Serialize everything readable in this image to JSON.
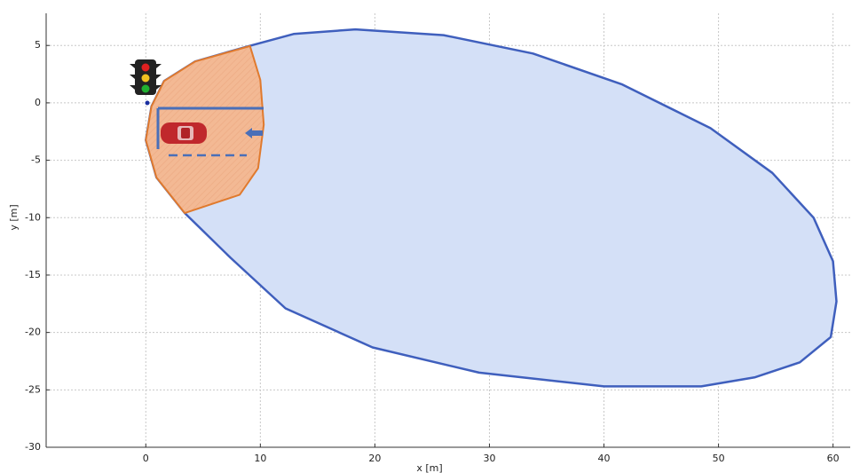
{
  "chart_data": {
    "type": "region",
    "x_label": "x [m]",
    "y_label": "y [m]",
    "xlim": [
      -8.7,
      61.5
    ],
    "ylim": [
      -30,
      7.8
    ],
    "xticks": [
      0,
      10,
      20,
      30,
      40,
      50,
      60
    ],
    "yticks": [
      5,
      0,
      -5,
      -10,
      -15,
      -20,
      -25,
      -30
    ],
    "grid": true,
    "series": [
      {
        "color": "#3f5fbd",
        "fill": "#d4e0f7",
        "x": [
          0,
          0.93,
          3.4,
          7.4,
          12.2,
          19.8,
          29.1,
          40,
          48.5,
          53.2,
          57.1,
          59.8,
          60.3,
          60,
          58.3,
          54.7,
          49.3,
          41.6,
          33.8,
          26,
          18.3,
          12.9,
          9,
          4.3,
          1.6,
          0.5
        ],
        "y": [
          -3.25,
          -6.5,
          -9.6,
          -13.5,
          -17.9,
          -21.3,
          -23.5,
          -24.7,
          -24.7,
          -23.9,
          -22.6,
          -20.4,
          -17.3,
          -13.8,
          -10,
          -6.1,
          -2.2,
          1.6,
          4.3,
          5.9,
          6.4,
          6,
          4.95,
          3.6,
          1.9,
          -0.3
        ]
      },
      {
        "color": "#e07a2e",
        "fill": "#f3b994",
        "x": [
          9.1,
          10,
          10.3,
          9.8,
          8.2,
          3.4,
          0.93,
          0,
          0.5,
          1.6,
          4.3
        ],
        "y": [
          4.95,
          2,
          -1.9,
          -5.7,
          -8,
          -9.6,
          -6.5,
          -3.25,
          -0.3,
          1.9,
          3.6
        ]
      }
    ]
  }
}
